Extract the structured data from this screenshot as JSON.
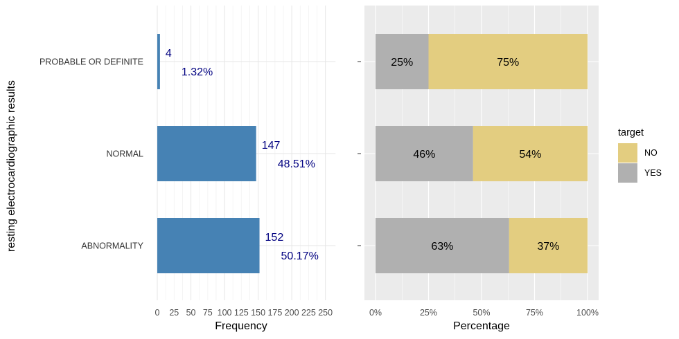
{
  "chart_data": [
    {
      "type": "bar",
      "orientation": "horizontal",
      "ylabel": "resting electrocardiographic results",
      "xlabel": "Frequency",
      "categories": [
        "PROBABLE OR DEFINITE",
        "NORMAL",
        "ABNORMALITY"
      ],
      "values": [
        4,
        147,
        152
      ],
      "labels": [
        "4",
        "147",
        "152"
      ],
      "percent_labels": [
        "1.32%",
        "48.51%",
        "50.17%"
      ],
      "xlim": [
        0,
        265
      ],
      "xticks": [
        "0",
        "25",
        "50",
        "75",
        "100",
        "125",
        "150",
        "175",
        "200",
        "225",
        "250"
      ],
      "grid": true,
      "colors": {
        "bar": "#4682B4",
        "annotation": "#000080"
      }
    },
    {
      "type": "bar",
      "orientation": "horizontal",
      "stacked": true,
      "xlabel": "Percentage",
      "categories": [
        "PROBABLE OR DEFINITE",
        "NORMAL",
        "ABNORMALITY"
      ],
      "legend": {
        "title": "target",
        "position": "right"
      },
      "series": [
        {
          "name": "YES",
          "values": [
            25,
            46,
            63
          ],
          "labels": [
            "25%",
            "46%",
            "63%"
          ],
          "color": "#B0B0B0"
        },
        {
          "name": "NO",
          "values": [
            75,
            54,
            37
          ],
          "labels": [
            "75%",
            "54%",
            "37%"
          ],
          "color": "#E3CD80"
        }
      ],
      "legend_order": [
        "NO",
        "YES"
      ],
      "xlim": [
        0,
        100
      ],
      "xticks": [
        "0%",
        "25%",
        "50%",
        "75%",
        "100%"
      ],
      "grid": true,
      "panel_background": "#EBEBEB"
    }
  ]
}
